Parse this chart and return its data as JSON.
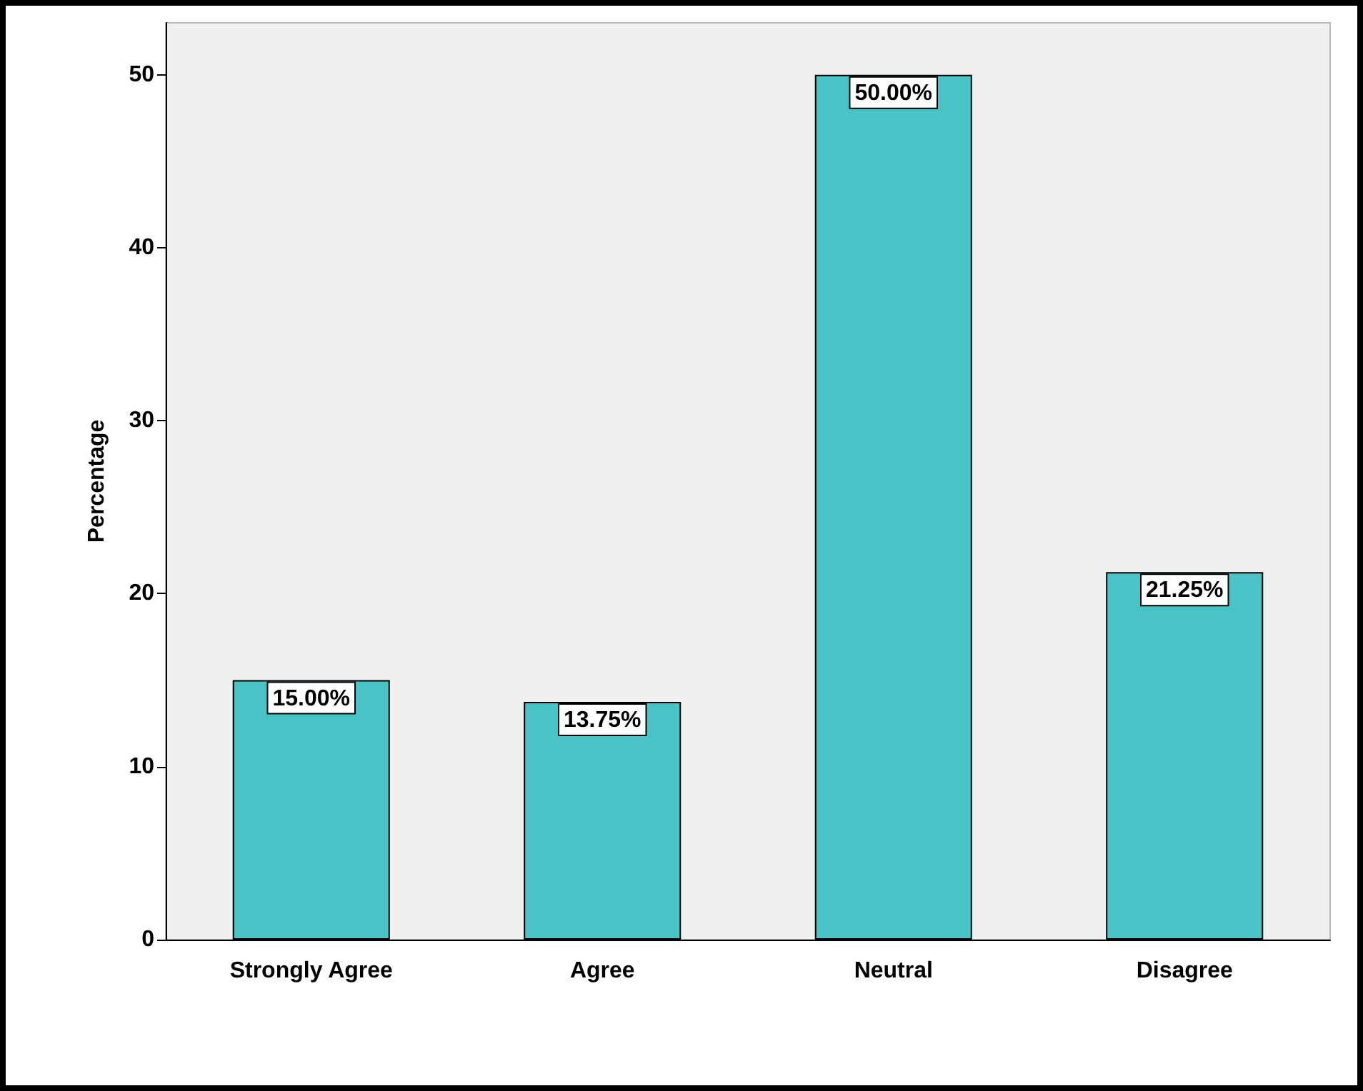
{
  "chart_data": {
    "type": "bar",
    "ylabel": "Percentage",
    "categories": [
      "Strongly Agree",
      "Agree",
      "Neutral",
      "Disagree"
    ],
    "values": [
      15,
      13.75,
      50,
      21.25
    ],
    "value_labels": [
      "15.00%",
      "13.75%",
      "50.00%",
      "21.25%"
    ],
    "color": "#48c3c6",
    "ylim": [
      0,
      53
    ],
    "yticks": [
      0,
      10,
      20,
      30,
      40,
      50
    ],
    "grid": false
  }
}
